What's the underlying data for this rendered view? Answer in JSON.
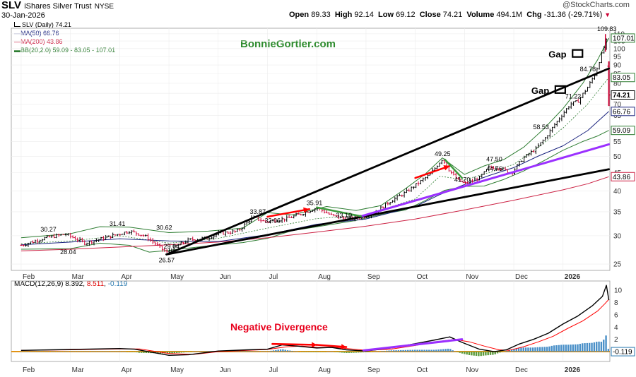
{
  "header": {
    "symbol": "SLV",
    "name": "iShares Silver Trust",
    "exchange": "NYSE",
    "date": "30-Jan-2026",
    "copyright": "@StockCharts.com",
    "open_label": "Open",
    "open": "89.33",
    "high_label": "High",
    "high": "92.14",
    "low_label": "Low",
    "low": "69.12",
    "close_label": "Close",
    "close": "74.21",
    "volume_label": "Volume",
    "volume": "494.1M",
    "chg_label": "Chg",
    "chg": "-31.36 (-29.71%)",
    "chg_arrow": "▼"
  },
  "legend": {
    "price": "SLV (Daily) 74.21",
    "ma50": "MA(50) 66.76",
    "ma200": "MA(200) 43.86",
    "bb": "BB(20,2.0) 59.09 - 83.05 - 107.01",
    "macd_label": "MACD(12,26,9)",
    "macd_line": "8.392",
    "macd_signal": "8.511",
    "macd_hist": "-0.119",
    "sep1": ",",
    "sep2": ","
  },
  "watermark": "BonnieGortler.com",
  "colors": {
    "price_up": "#000000",
    "price_down": "#cc0033",
    "ma50": "#1a237e",
    "ma200": "#cc2244",
    "bb": "#2e7d32",
    "trend": "#000000",
    "purple": "#9b30ff",
    "red_arrow": "#ff0000",
    "macd_line": "#000000",
    "macd_signal": "#ff0000",
    "macd_hist": "#4a90c8",
    "macd_hist_neg": "#5a9a3a",
    "zero_line": "#e08a00",
    "axis_text": "#333333",
    "divergence_text": "#e8001c",
    "last_close_box": "#000000"
  },
  "chart_data": [
    {
      "type": "line",
      "title": "SLV iShares Silver Trust NYSE (Daily) 74.21",
      "x_months": [
        "Feb",
        "Mar",
        "Apr",
        "May",
        "Jun",
        "Jul",
        "Aug",
        "Sep",
        "Oct",
        "Nov",
        "Dec",
        "2026"
      ],
      "x_range_months": [
        0.8,
        12.95
      ],
      "y_scale": "log",
      "ylim": [
        24,
        114
      ],
      "y_ticks": [
        25,
        30,
        35,
        40,
        45,
        50,
        55,
        60,
        65,
        70,
        75,
        80,
        85,
        90,
        95,
        100,
        105,
        110
      ],
      "price_series": {
        "name": "SLV close",
        "x": [
          1.0,
          1.5,
          1.9,
          2.3,
          2.7,
          3.2,
          3.5,
          3.95,
          4.05,
          4.4,
          4.8,
          5.0,
          5.4,
          5.7,
          5.95,
          6.2,
          6.4,
          6.7,
          7.0,
          7.3,
          7.5,
          7.7,
          7.95,
          8.2,
          8.5,
          8.8,
          9.0,
          9.3,
          9.55,
          9.7,
          9.85,
          10.0,
          10.3,
          10.5,
          10.7,
          10.95,
          11.2,
          11.45,
          11.65,
          11.8,
          11.95,
          12.15,
          12.3,
          12.5,
          12.65,
          12.78,
          12.88,
          12.93
        ],
        "y": [
          28.2,
          29.6,
          30.3,
          28.6,
          29.6,
          30.9,
          30.0,
          26.9,
          27.6,
          29.2,
          29.6,
          30.4,
          30.9,
          33.8,
          32.8,
          33.2,
          33.5,
          34.6,
          35.9,
          34.2,
          33.6,
          33.5,
          33.9,
          35.0,
          37.5,
          39.6,
          41.5,
          44.5,
          49.2,
          45.5,
          43.0,
          41.9,
          43.5,
          46.5,
          46.5,
          44.9,
          49.5,
          52.5,
          56.5,
          60.5,
          64.5,
          70.0,
          71.2,
          78.0,
          84.8,
          96.0,
          105.0,
          74.21
        ]
      },
      "ma50": {
        "name": "MA(50) 66.76",
        "x": [
          1.0,
          2.0,
          3.0,
          4.0,
          5.0,
          6.0,
          7.0,
          8.0,
          9.0,
          9.5,
          10.0,
          10.5,
          11.0,
          11.5,
          12.0,
          12.5,
          12.93
        ],
        "y": [
          28.3,
          28.8,
          29.4,
          29.0,
          28.9,
          30.2,
          32.3,
          33.4,
          36.2,
          39.1,
          41.7,
          44.2,
          46.5,
          50.1,
          53.5,
          59.0,
          66.76
        ]
      },
      "ma200": {
        "name": "MA(200) 43.86",
        "x": [
          1.0,
          2.0,
          3.0,
          4.0,
          5.0,
          6.0,
          7.0,
          8.0,
          9.0,
          10.0,
          11.0,
          12.0,
          12.5,
          12.93
        ],
        "y": [
          27.2,
          27.5,
          27.9,
          28.3,
          28.8,
          29.6,
          30.7,
          31.9,
          33.4,
          35.4,
          37.7,
          40.3,
          41.9,
          43.86
        ]
      },
      "bb_upper": {
        "name": "BB upper 107.01",
        "x": [
          1.0,
          2.0,
          2.6,
          3.2,
          4.0,
          4.8,
          5.5,
          6.0,
          6.5,
          7.2,
          7.8,
          8.3,
          8.8,
          9.2,
          9.55,
          10.0,
          10.4,
          10.8,
          11.2,
          11.6,
          12.0,
          12.4,
          12.7,
          12.93
        ],
        "y": [
          29.6,
          30.4,
          31.8,
          31.7,
          30.6,
          30.9,
          31.5,
          34.8,
          34.3,
          36.2,
          35.3,
          36.4,
          40.6,
          44.6,
          49.5,
          44.5,
          47.0,
          49.0,
          53.0,
          59.5,
          68.0,
          80.0,
          93.0,
          107.01
        ]
      },
      "bb_lower": {
        "name": "BB lower 59.09",
        "x": [
          1.0,
          2.0,
          2.6,
          3.2,
          3.6,
          4.0,
          4.8,
          5.5,
          6.0,
          6.5,
          7.2,
          7.8,
          8.3,
          8.8,
          9.2,
          9.6,
          10.0,
          10.4,
          10.8,
          11.2,
          11.6,
          12.0,
          12.4,
          12.7,
          12.93
        ],
        "y": [
          27.5,
          27.6,
          28.6,
          28.2,
          27.0,
          27.3,
          28.1,
          28.7,
          29.5,
          31.0,
          32.1,
          33.1,
          34.4,
          35.4,
          37.6,
          40.2,
          41.2,
          41.3,
          43.1,
          45.5,
          48.5,
          52.0,
          55.0,
          57.0,
          59.09
        ]
      },
      "bb_middle": {
        "name": "BB middle 83.05",
        "x": [
          1.0,
          2.0,
          3.0,
          4.0,
          5.0,
          6.0,
          7.0,
          8.0,
          9.0,
          9.5,
          10.0,
          10.5,
          11.0,
          11.5,
          12.0,
          12.5,
          12.93
        ],
        "y": [
          28.5,
          29.0,
          30.0,
          28.6,
          29.5,
          31.5,
          33.5,
          34.3,
          38.0,
          44.0,
          43.0,
          45.0,
          47.5,
          53.0,
          60.0,
          70.0,
          83.05
        ]
      },
      "price_labels": [
        {
          "text": "30.27",
          "x": 1.55,
          "y": 30.27
        },
        {
          "text": "28.04",
          "x": 1.95,
          "y": 28.04
        },
        {
          "text": "31.41",
          "x": 2.95,
          "y": 31.41
        },
        {
          "text": "26.57",
          "x": 3.95,
          "y": 26.57
        },
        {
          "text": "30.62",
          "x": 3.9,
          "y": 30.62
        },
        {
          "text": "29.04",
          "x": 4.05,
          "y": 29.04
        },
        {
          "text": "33.87",
          "x": 5.8,
          "y": 33.87
        },
        {
          "text": "32.06",
          "x": 6.1,
          "y": 32.06
        },
        {
          "text": "35.91",
          "x": 6.95,
          "y": 35.91
        },
        {
          "text": "33.10",
          "x": 7.55,
          "y": 33.1
        },
        {
          "text": "49.25",
          "x": 9.55,
          "y": 49.25
        },
        {
          "text": "41.70",
          "x": 9.95,
          "y": 41.7
        },
        {
          "text": "47.50",
          "x": 10.6,
          "y": 47.5
        },
        {
          "text": "44.76",
          "x": 10.6,
          "y": 44.76
        },
        {
          "text": "58.53",
          "x": 11.55,
          "y": 58.53
        },
        {
          "text": "71.22",
          "x": 12.2,
          "y": 71.22
        },
        {
          "text": "84.78",
          "x": 12.5,
          "y": 84.78
        },
        {
          "text": "109.83",
          "x": 12.85,
          "y": 109.83
        }
      ],
      "right_axis_labels": {
        "bb_upper": "107.01",
        "bb_middle": "83.05",
        "last": "74.21",
        "ma50": "66.76",
        "bb_lower": "59.09",
        "ma200": "43.86"
      },
      "annotations": [
        {
          "text": "Gap",
          "x": 12.05,
          "y": 96.5
        },
        {
          "text": "Gap",
          "x": 11.7,
          "y": 76.5
        }
      ],
      "trendlines": [
        {
          "name": "uptrend-black-short",
          "x": [
            3.95,
            12.93
          ],
          "y": [
            26.6,
            88.0
          ]
        },
        {
          "name": "uptrend-black-long",
          "x": [
            3.95,
            12.93
          ],
          "y": [
            26.6,
            46.0
          ]
        },
        {
          "name": "uptrend-purple",
          "x": [
            7.9,
            12.93
          ],
          "y": [
            34.0,
            54.0
          ]
        },
        {
          "name": "red-arrow-jul",
          "x": [
            6.0,
            6.85
          ],
          "y": [
            33.9,
            35.6
          ]
        },
        {
          "name": "red-arrow-oct",
          "x": [
            9.0,
            9.7
          ],
          "y": [
            43.5,
            47.0
          ]
        },
        {
          "name": "green-arrow-aug",
          "x": [
            7.0,
            7.9
          ],
          "y": [
            36.0,
            34.0
          ]
        },
        {
          "name": "green-arrow-oct",
          "x": [
            9.6,
            9.95
          ],
          "y": [
            49.0,
            43.5
          ]
        }
      ]
    },
    {
      "type": "line",
      "title": "MACD(12,26,9) 8.392, 8.511, -0.119",
      "x_months": [
        "Feb",
        "Mar",
        "Apr",
        "May",
        "Jun",
        "Jul",
        "Aug",
        "Sep",
        "Oct",
        "Nov",
        "Dec",
        "2026"
      ],
      "ylim": [
        -1.6,
        11.5
      ],
      "y_ticks": [
        2,
        4,
        6,
        8,
        10
      ],
      "last_value_label": "-0.119",
      "macd_line": {
        "name": "MACD",
        "x": [
          1.0,
          2.0,
          3.0,
          3.3,
          4.0,
          4.4,
          5.0,
          5.6,
          6.0,
          6.3,
          6.6,
          7.0,
          7.3,
          7.6,
          8.0,
          8.5,
          9.0,
          9.4,
          9.7,
          9.95,
          10.3,
          10.6,
          10.85,
          11.1,
          11.4,
          11.7,
          12.0,
          12.3,
          12.6,
          12.8,
          12.88,
          12.93
        ],
        "y": [
          0.2,
          0.35,
          0.5,
          0.4,
          -0.6,
          -0.5,
          0.1,
          0.3,
          0.4,
          1.1,
          0.9,
          0.6,
          0.7,
          0.3,
          0.1,
          0.6,
          1.3,
          1.9,
          2.4,
          1.5,
          0.4,
          0.0,
          0.3,
          1.2,
          2.0,
          3.0,
          4.5,
          5.8,
          7.5,
          9.0,
          10.8,
          8.392
        ]
      },
      "signal_line": {
        "name": "Signal",
        "x": [
          1.0,
          2.0,
          3.0,
          3.4,
          4.0,
          4.5,
          5.0,
          5.6,
          6.0,
          6.4,
          6.7,
          7.0,
          7.4,
          7.7,
          8.0,
          8.5,
          9.0,
          9.4,
          9.8,
          10.1,
          10.4,
          10.7,
          10.9,
          11.2,
          11.5,
          11.8,
          12.1,
          12.4,
          12.7,
          12.85,
          12.93
        ],
        "y": [
          0.2,
          0.3,
          0.45,
          0.45,
          -0.3,
          -0.45,
          0.0,
          0.2,
          0.35,
          0.8,
          0.9,
          0.7,
          0.65,
          0.45,
          0.2,
          0.4,
          1.0,
          1.6,
          2.0,
          1.6,
          0.9,
          0.3,
          0.2,
          0.8,
          1.6,
          2.5,
          3.8,
          5.0,
          6.6,
          7.8,
          8.511
        ]
      },
      "divergence_arrows": [
        {
          "name": "red-divergence-1",
          "x": [
            6.1,
            7.0
          ],
          "y": [
            1.25,
            1.1
          ]
        },
        {
          "name": "red-divergence-2",
          "x": [
            7.0,
            7.6
          ],
          "y": [
            1.1,
            0.75
          ]
        },
        {
          "name": "purple-macd-trend",
          "x": [
            7.95,
            9.95
          ],
          "y": [
            0.2,
            2.0
          ]
        }
      ],
      "annotation": "Negative Divergence"
    }
  ]
}
